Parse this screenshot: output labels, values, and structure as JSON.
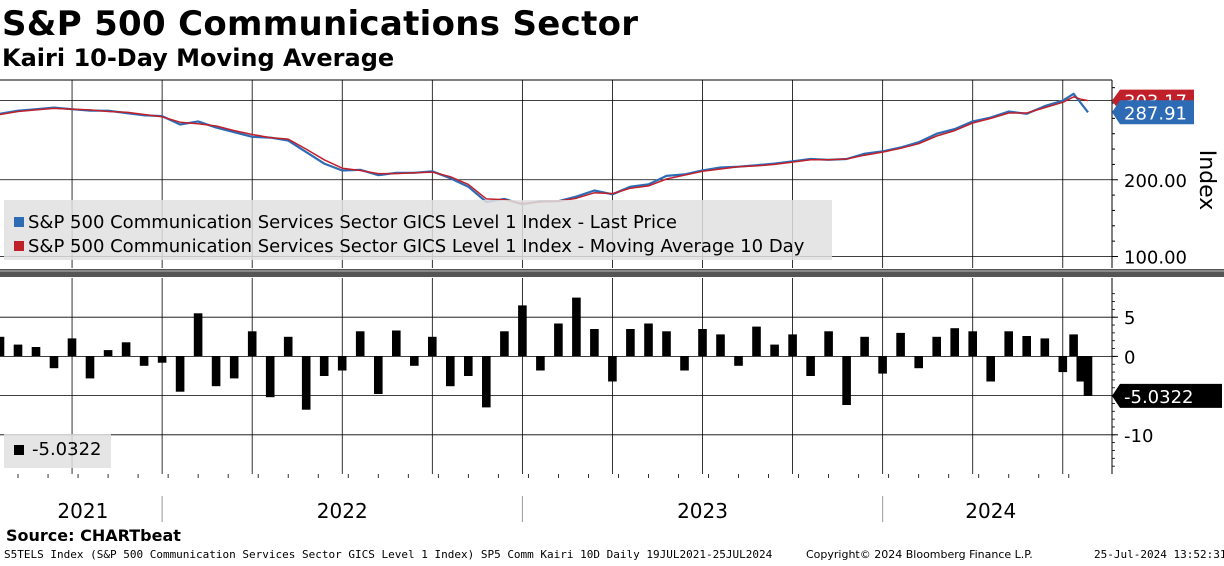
{
  "header": {
    "title": "S&P 500 Communications Sector",
    "subtitle": "Kairi 10-Day Moving Average",
    "source": "Source: CHARTbeat"
  },
  "footer": {
    "description": "S5TELS Index (S&P 500 Communication Services Sector GICS Level 1 Index) SP5 Comm Kairi 10D  Daily 19JUL2021-25JUL2024",
    "copyright": "Copyright© 2024 Bloomberg Finance L.P.",
    "timestamp": "25-Jul-2024 13:52:31"
  },
  "colors": {
    "price": "#2e6bb5",
    "ma": "#c0202a",
    "kairi": "#000000"
  },
  "chart_data": [
    {
      "type": "line",
      "title": "S&P 500 Communication Services Sector GICS Level 1 Index",
      "ylabel": "Index",
      "ylim": [
        85,
        330
      ],
      "yticks": [
        100,
        200
      ],
      "ytick_labels": [
        "100.00",
        "200.00"
      ],
      "x_start": 2021.55,
      "x_end": 2024.57,
      "xtick_labels": [
        "2021",
        "2022",
        "2023",
        "2024"
      ],
      "x": [
        2021.55,
        2021.6,
        2021.65,
        2021.7,
        2021.75,
        2021.8,
        2021.85,
        2021.9,
        2021.95,
        2022.0,
        2022.05,
        2022.1,
        2022.15,
        2022.2,
        2022.25,
        2022.3,
        2022.35,
        2022.4,
        2022.45,
        2022.5,
        2022.55,
        2022.6,
        2022.65,
        2022.7,
        2022.75,
        2022.8,
        2022.85,
        2022.9,
        2022.95,
        2023.0,
        2023.05,
        2023.1,
        2023.15,
        2023.2,
        2023.25,
        2023.3,
        2023.35,
        2023.4,
        2023.45,
        2023.5,
        2023.55,
        2023.6,
        2023.65,
        2023.7,
        2023.75,
        2023.8,
        2023.85,
        2023.9,
        2023.95,
        2024.0,
        2024.05,
        2024.1,
        2024.15,
        2024.2,
        2024.25,
        2024.3,
        2024.35,
        2024.4,
        2024.45,
        2024.5,
        2024.53,
        2024.55,
        2024.57
      ],
      "last_price": [
        286,
        290,
        292,
        294,
        292,
        290,
        290,
        287,
        284,
        283,
        272,
        276,
        268,
        262,
        256,
        255,
        251,
        236,
        221,
        212,
        213,
        206,
        209,
        209,
        211,
        202,
        191,
        171,
        175,
        168,
        172,
        172,
        178,
        186,
        181,
        191,
        194,
        205,
        207,
        212,
        216,
        217,
        219,
        221,
        224,
        227,
        226,
        227,
        234,
        237,
        242,
        249,
        260,
        266,
        276,
        281,
        289,
        286,
        296,
        303,
        312,
        300,
        287.91
      ],
      "moving_avg_10d": [
        285,
        289,
        291,
        293,
        292,
        291,
        289,
        288,
        285,
        282,
        275,
        273,
        270,
        264,
        259,
        255,
        253,
        240,
        226,
        215,
        212,
        208,
        208,
        209,
        210,
        204,
        194,
        175,
        174,
        169,
        171,
        172,
        176,
        183,
        182,
        189,
        192,
        201,
        206,
        211,
        214,
        217,
        218,
        220,
        223,
        226,
        226,
        227,
        232,
        236,
        241,
        247,
        257,
        264,
        274,
        280,
        287,
        287,
        294,
        301,
        308,
        305,
        303.17
      ],
      "series": [
        {
          "name": "S&P 500 Communication Services Sector GICS Level 1 Index - Last Price",
          "last_value": "287.91"
        },
        {
          "name": "S&P 500 Communication Services Sector GICS Level 1 Index - Moving Average 10 Day",
          "last_value": "303.17"
        }
      ]
    },
    {
      "type": "bar",
      "title": "Kairi 10-Day",
      "ylim": [
        -15,
        10
      ],
      "yticks": [
        5,
        0,
        -10
      ],
      "ytick_labels": [
        "5",
        "0",
        "-10"
      ],
      "x": [
        2021.55,
        2021.6,
        2021.65,
        2021.7,
        2021.75,
        2021.8,
        2021.85,
        2021.9,
        2021.95,
        2022.0,
        2022.05,
        2022.1,
        2022.15,
        2022.2,
        2022.25,
        2022.3,
        2022.35,
        2022.4,
        2022.45,
        2022.5,
        2022.55,
        2022.6,
        2022.65,
        2022.7,
        2022.75,
        2022.8,
        2022.85,
        2022.9,
        2022.95,
        2023.0,
        2023.05,
        2023.1,
        2023.15,
        2023.2,
        2023.25,
        2023.3,
        2023.35,
        2023.4,
        2023.45,
        2023.5,
        2023.55,
        2023.6,
        2023.65,
        2023.7,
        2023.75,
        2023.8,
        2023.85,
        2023.9,
        2023.95,
        2024.0,
        2024.05,
        2024.1,
        2024.15,
        2024.2,
        2024.25,
        2024.3,
        2024.35,
        2024.4,
        2024.45,
        2024.5,
        2024.53,
        2024.55,
        2024.57
      ],
      "values": [
        2.5,
        1.5,
        1.2,
        -1.5,
        2.3,
        -2.8,
        0.8,
        1.8,
        -1.2,
        -0.8,
        -4.5,
        5.5,
        -3.8,
        -2.8,
        3.2,
        -5.2,
        2.5,
        -6.8,
        -2.5,
        -1.8,
        3.2,
        -4.8,
        3.3,
        -1.2,
        2.5,
        -3.8,
        -2.5,
        -6.5,
        3.2,
        6.5,
        -1.8,
        4.2,
        7.5,
        3.5,
        -3.2,
        3.5,
        4.2,
        3.2,
        -1.8,
        3.5,
        2.8,
        -1.2,
        3.8,
        1.5,
        2.8,
        -2.5,
        3.2,
        -6.2,
        2.5,
        -2.2,
        3.0,
        -1.5,
        2.5,
        3.6,
        3.2,
        -3.2,
        3.2,
        2.6,
        2.3,
        -2.0,
        2.8,
        -3.2,
        -5.0322
      ],
      "last_value": "-5.0322",
      "legend": "-5.0322"
    }
  ]
}
